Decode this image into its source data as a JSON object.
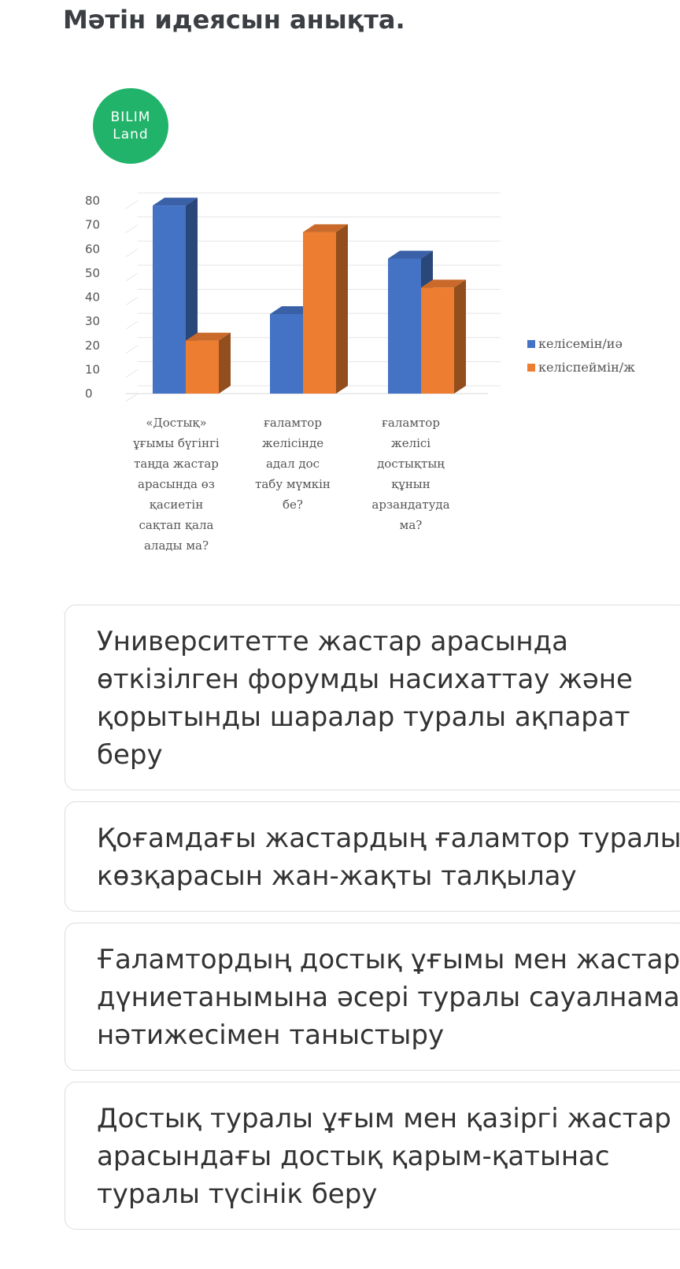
{
  "question": "Мәтін идеясын анықта.",
  "logo": {
    "line1": "BILIM",
    "line2": "Land"
  },
  "chart_data": {
    "type": "bar",
    "categories": [
      [
        "«Достық»",
        "ұғымы бүгінгі",
        "таңда жастар",
        "арасында өз",
        "қасиетін",
        "сақтап қала",
        "алады ма?"
      ],
      [
        "ғаламтор",
        "желісінде",
        "адал дос",
        "табу мүмкін",
        "бе?"
      ],
      [
        "ғаламтор",
        "желісі",
        "достықтың",
        "құнын",
        "арзандатуда",
        "ма?"
      ]
    ],
    "series": [
      {
        "name": "келісемін/иә",
        "values": [
          78,
          33,
          56
        ],
        "color": "#4472c4"
      },
      {
        "name": "келіспеймін/ж",
        "values": [
          22,
          67,
          44
        ],
        "color": "#ed7d31"
      }
    ],
    "yticks": [
      "80",
      "70",
      "60",
      "50",
      "40",
      "30",
      "20",
      "10",
      "0"
    ],
    "ylim": [
      0,
      80
    ],
    "grid": true,
    "legend": "right"
  },
  "options": [
    {
      "lines": [
        "Университетте жастар арасында",
        "өткізілген форумды насихаттау және",
        "қорытынды шаралар туралы ақпарат",
        "беру"
      ]
    },
    {
      "lines": [
        "Қоғамдағы жастардың ғаламтор туралы",
        "көзқарасын жан-жақты талқылау"
      ]
    },
    {
      "lines": [
        "Ғаламтордың достық ұғымы мен жастар",
        "дүниетанымына әсері туралы сауалнама",
        "нәтижесімен таныстыру"
      ]
    },
    {
      "lines": [
        "Достық туралы ұғым мен қазіргі жастар",
        "арасындағы достық қарым-қатынас",
        "туралы түсінік беру"
      ]
    }
  ]
}
